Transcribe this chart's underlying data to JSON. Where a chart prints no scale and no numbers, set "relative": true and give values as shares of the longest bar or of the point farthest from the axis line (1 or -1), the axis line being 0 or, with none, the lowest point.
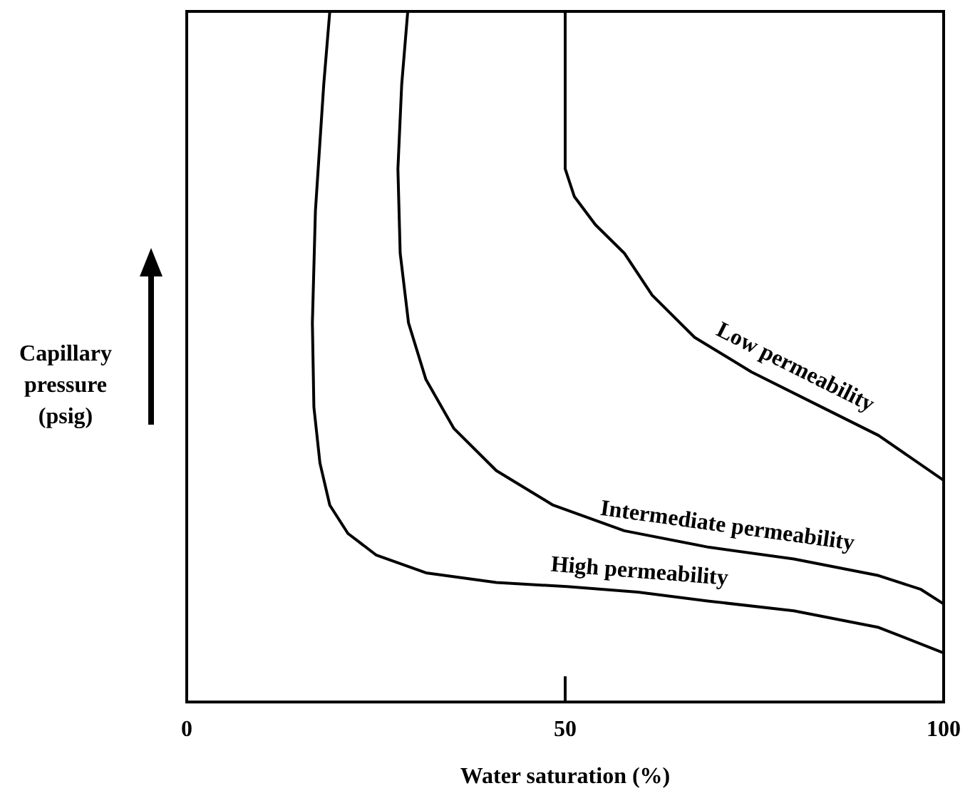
{
  "chart_data": {
    "type": "line",
    "relative": true,
    "xlabel": "Water saturation (%)",
    "ylabel": "Capillary pressure (psig)",
    "xlim": [
      0,
      100
    ],
    "xticks": [
      0,
      50,
      100
    ],
    "grid": false,
    "legend": false,
    "marker": "none",
    "line_style": "solid",
    "series": [
      {
        "name": "High permeability",
        "color": "#000000",
        "x": [
          18.9,
          18.1,
          17.0,
          16.6,
          16.8,
          17.6,
          18.9,
          21.3,
          25.0,
          31.6,
          40.9,
          50.3,
          59.6,
          69.0,
          80.2,
          91.4,
          100
        ],
        "values": [
          1,
          0.894,
          0.711,
          0.549,
          0.427,
          0.346,
          0.285,
          0.244,
          0.213,
          0.187,
          0.173,
          0.167,
          0.159,
          0.146,
          0.132,
          0.108,
          0.071
        ]
      },
      {
        "name": "Intermediate permeability",
        "color": "#000000",
        "x": [
          29.2,
          28.4,
          27.9,
          28.2,
          29.3,
          31.6,
          35.3,
          40.9,
          48.4,
          57.8,
          69.0,
          80.2,
          91.4,
          97.0,
          100
        ],
        "values": [
          1,
          0.894,
          0.772,
          0.65,
          0.549,
          0.467,
          0.396,
          0.335,
          0.285,
          0.248,
          0.224,
          0.207,
          0.183,
          0.163,
          0.142
        ]
      },
      {
        "name": "Low permeability",
        "color": "#000000",
        "x": [
          50,
          50,
          51.2,
          54.0,
          57.8,
          61.5,
          67.1,
          74.6,
          83.9,
          91.4,
          100
        ],
        "values": [
          1,
          0.772,
          0.732,
          0.691,
          0.65,
          0.589,
          0.528,
          0.478,
          0.427,
          0.386,
          0.321
        ]
      }
    ]
  }
}
